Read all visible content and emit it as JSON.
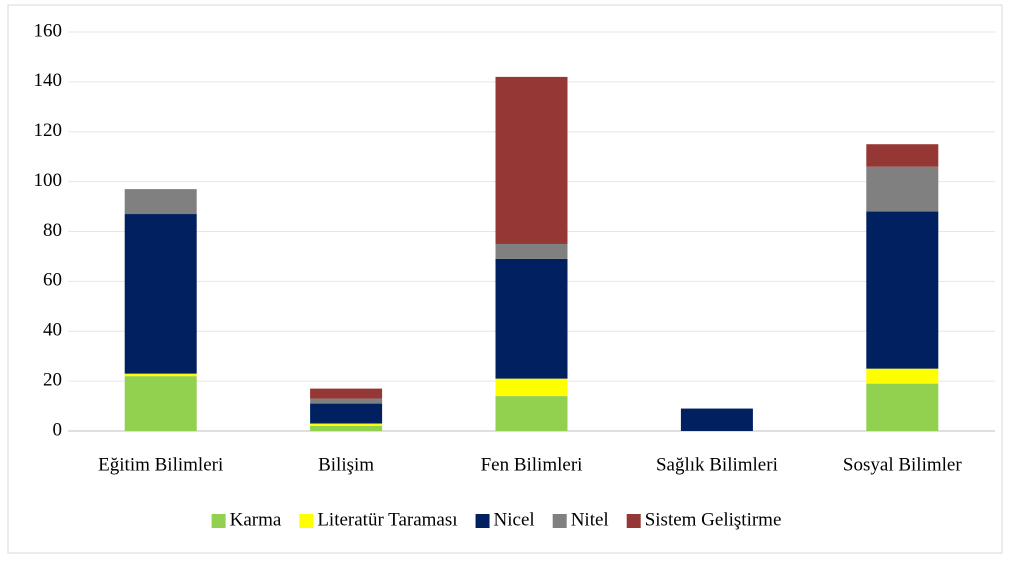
{
  "chart_data": {
    "type": "stacked_bar",
    "categories": [
      "Eğitim Bilimleri",
      "Bilişim",
      "Fen Bilimleri",
      "Sağlık Bilimleri",
      "Sosyal Bilimler"
    ],
    "series": [
      {
        "name": "Karma",
        "color": "#92d050",
        "values": [
          22,
          2,
          14,
          0,
          19
        ]
      },
      {
        "name": "Literatür Taraması",
        "color": "#ffff00",
        "values": [
          1,
          1,
          7,
          0,
          6
        ]
      },
      {
        "name": "Nicel",
        "color": "#002060",
        "values": [
          64,
          8,
          48,
          9,
          63
        ]
      },
      {
        "name": "Nitel",
        "color": "#808080",
        "values": [
          10,
          2,
          6,
          0,
          18
        ]
      },
      {
        "name": "Sistem Geliştirme",
        "color": "#953735",
        "values": [
          0,
          4,
          67,
          0,
          9
        ]
      }
    ],
    "ylim": [
      0,
      160
    ],
    "yticks": [
      0,
      20,
      40,
      60,
      80,
      100,
      120,
      140,
      160
    ],
    "grid": true,
    "legend": "bottom"
  }
}
